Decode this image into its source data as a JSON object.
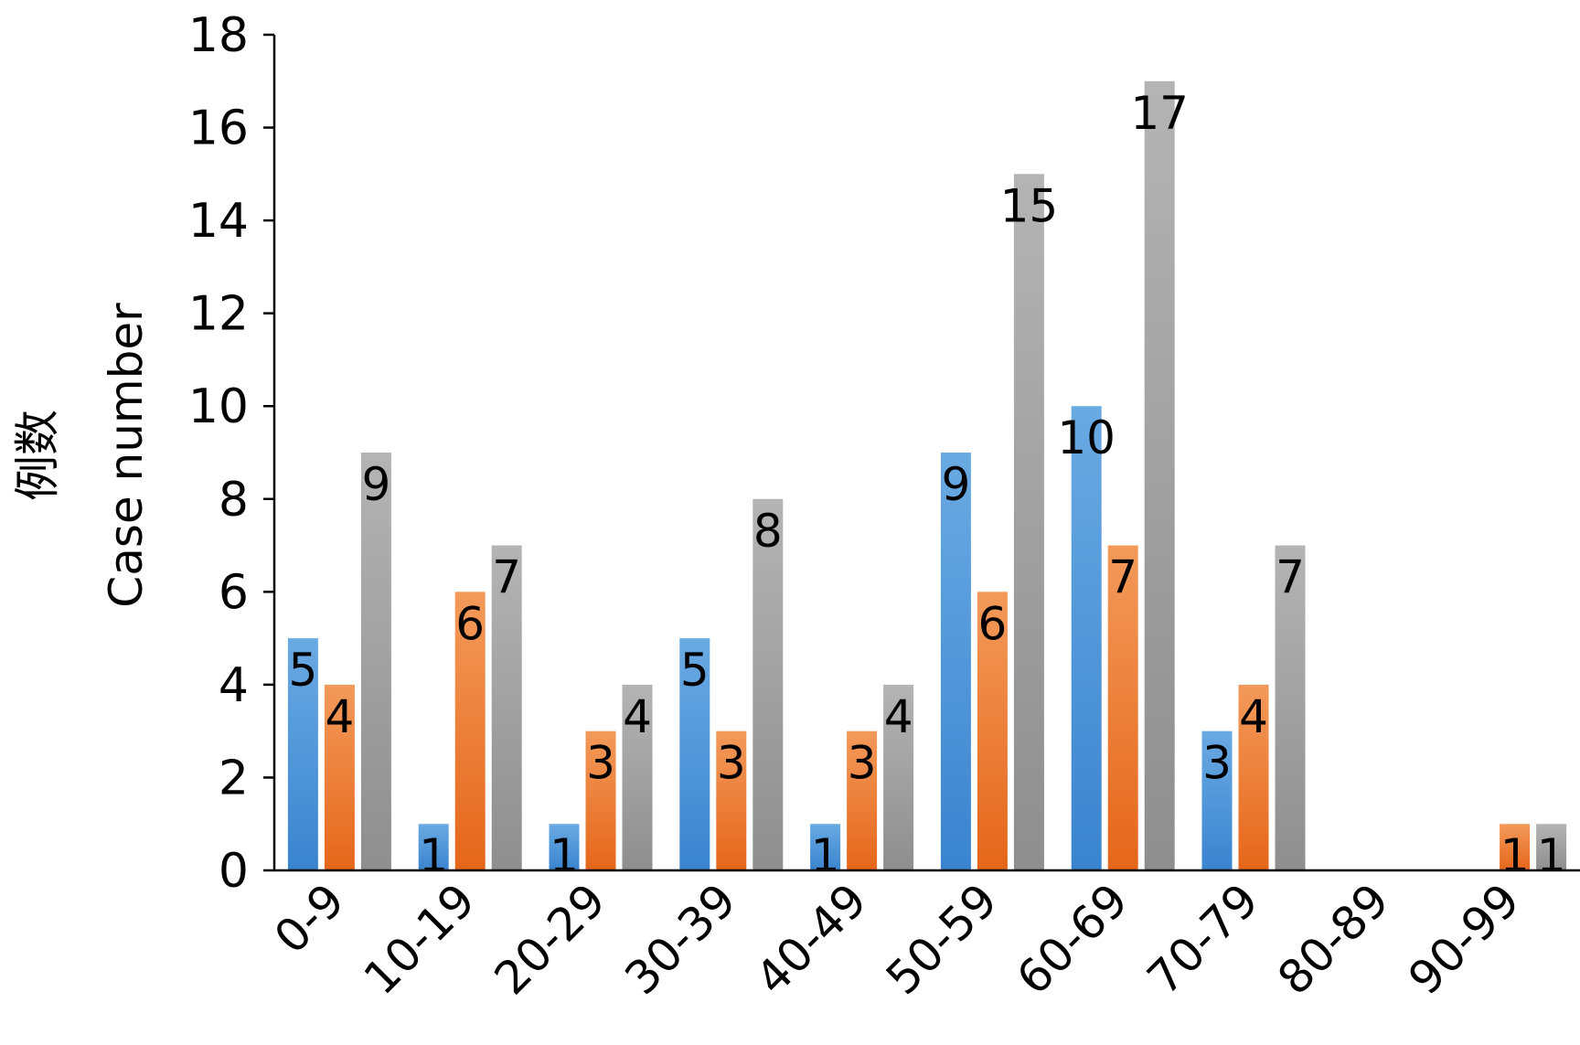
{
  "chart_data": {
    "type": "bar",
    "ylabel_cn": "例数",
    "ylabel": "Case number",
    "xlabel": "",
    "ylim": [
      0,
      18
    ],
    "yticks": [
      0,
      2,
      4,
      6,
      8,
      10,
      12,
      14,
      16,
      18
    ],
    "categories": [
      "0-9",
      "10-19",
      "20-29",
      "30-39",
      "40-49",
      "50-59",
      "60-69",
      "70-79",
      "80-89",
      "90-99"
    ],
    "series": [
      {
        "values": [
          5,
          1,
          1,
          5,
          1,
          9,
          10,
          3,
          0,
          0
        ],
        "color_top": "#6aaae3",
        "color_bottom": "#3a84cf"
      },
      {
        "values": [
          4,
          6,
          3,
          3,
          3,
          6,
          7,
          4,
          0,
          1
        ],
        "color_top": "#f39a5a",
        "color_bottom": "#e5661a"
      },
      {
        "values": [
          9,
          7,
          4,
          8,
          4,
          15,
          17,
          7,
          0,
          1
        ],
        "color_top": "#b4b4b4",
        "color_bottom": "#8e8e8e"
      }
    ],
    "grid": false,
    "legend": "none"
  }
}
